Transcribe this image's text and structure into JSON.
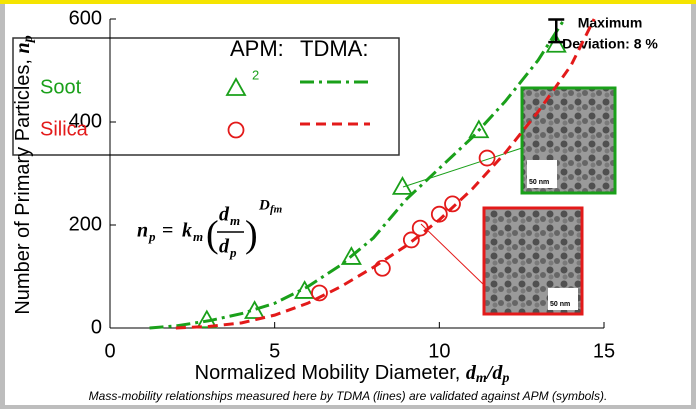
{
  "chart_data": {
    "type": "scatter-line",
    "xlabel": {
      "text": "Normalized Mobility Diameter, ",
      "v1": "d",
      "s1": "m",
      "slash": "/",
      "v2": "d",
      "s2": "p"
    },
    "ylabel": {
      "text": "Number of Primary Particles, ",
      "v": "n",
      "s": "p"
    },
    "xlim": [
      0,
      15
    ],
    "xticks": [
      0,
      5,
      10,
      15
    ],
    "ylim": [
      0,
      600
    ],
    "yticks": [
      0,
      200,
      400,
      600
    ],
    "legend_headers": [
      "APM:",
      "TDMA:"
    ],
    "series": [
      {
        "name": "Soot",
        "color": "#1aa01a",
        "marker": "triangle",
        "line_style": "dashdot",
        "note": "2",
        "x": [
          2.94,
          4.39,
          5.91,
          7.33,
          8.88,
          11.2,
          13.55
        ],
        "values": [
          15,
          33,
          72,
          138,
          274,
          384,
          550
        ],
        "line_x": [
          1.2,
          2,
          3,
          4,
          5,
          6,
          7,
          8,
          9,
          10,
          11,
          12,
          13,
          13.8
        ],
        "line_values": [
          0,
          4,
          14,
          28,
          48,
          80,
          122,
          175,
          250,
          310,
          370,
          440,
          520,
          600
        ]
      },
      {
        "name": "Silica",
        "color": "#e31a1a",
        "marker": "circle",
        "line_style": "dashed",
        "x": [
          6.36,
          8.27,
          9.15,
          9.42,
          10.0,
          10.4,
          11.45
        ],
        "values": [
          68,
          116,
          171,
          194,
          221,
          241,
          330
        ],
        "line_x": [
          2,
          3,
          4,
          5,
          6,
          7,
          8,
          9,
          10,
          11,
          12,
          13,
          14,
          14.7
        ],
        "line_values": [
          0,
          3,
          10,
          25,
          48,
          80,
          118,
          160,
          210,
          270,
          340,
          420,
          510,
          600
        ]
      }
    ],
    "error_bar": {
      "x": 13.55,
      "value": 577,
      "error": 22
    },
    "annotation": [
      "Maximum",
      "Deviation: 8 %"
    ],
    "equation": {
      "n": "n",
      "n_sub": "p",
      "eq": "=",
      "k": "k",
      "k_sub": "m",
      "num": "d",
      "num_sub": "m",
      "den": "d",
      "den_sub": "p",
      "exp": "D",
      "exp_sub": "fm"
    },
    "insets": [
      {
        "scale": "50 nm"
      },
      {
        "scale": "50 nm"
      }
    ],
    "caption": "Mass-mobility relationships measured here by TDMA (lines) are validated against APM (symbols)."
  }
}
